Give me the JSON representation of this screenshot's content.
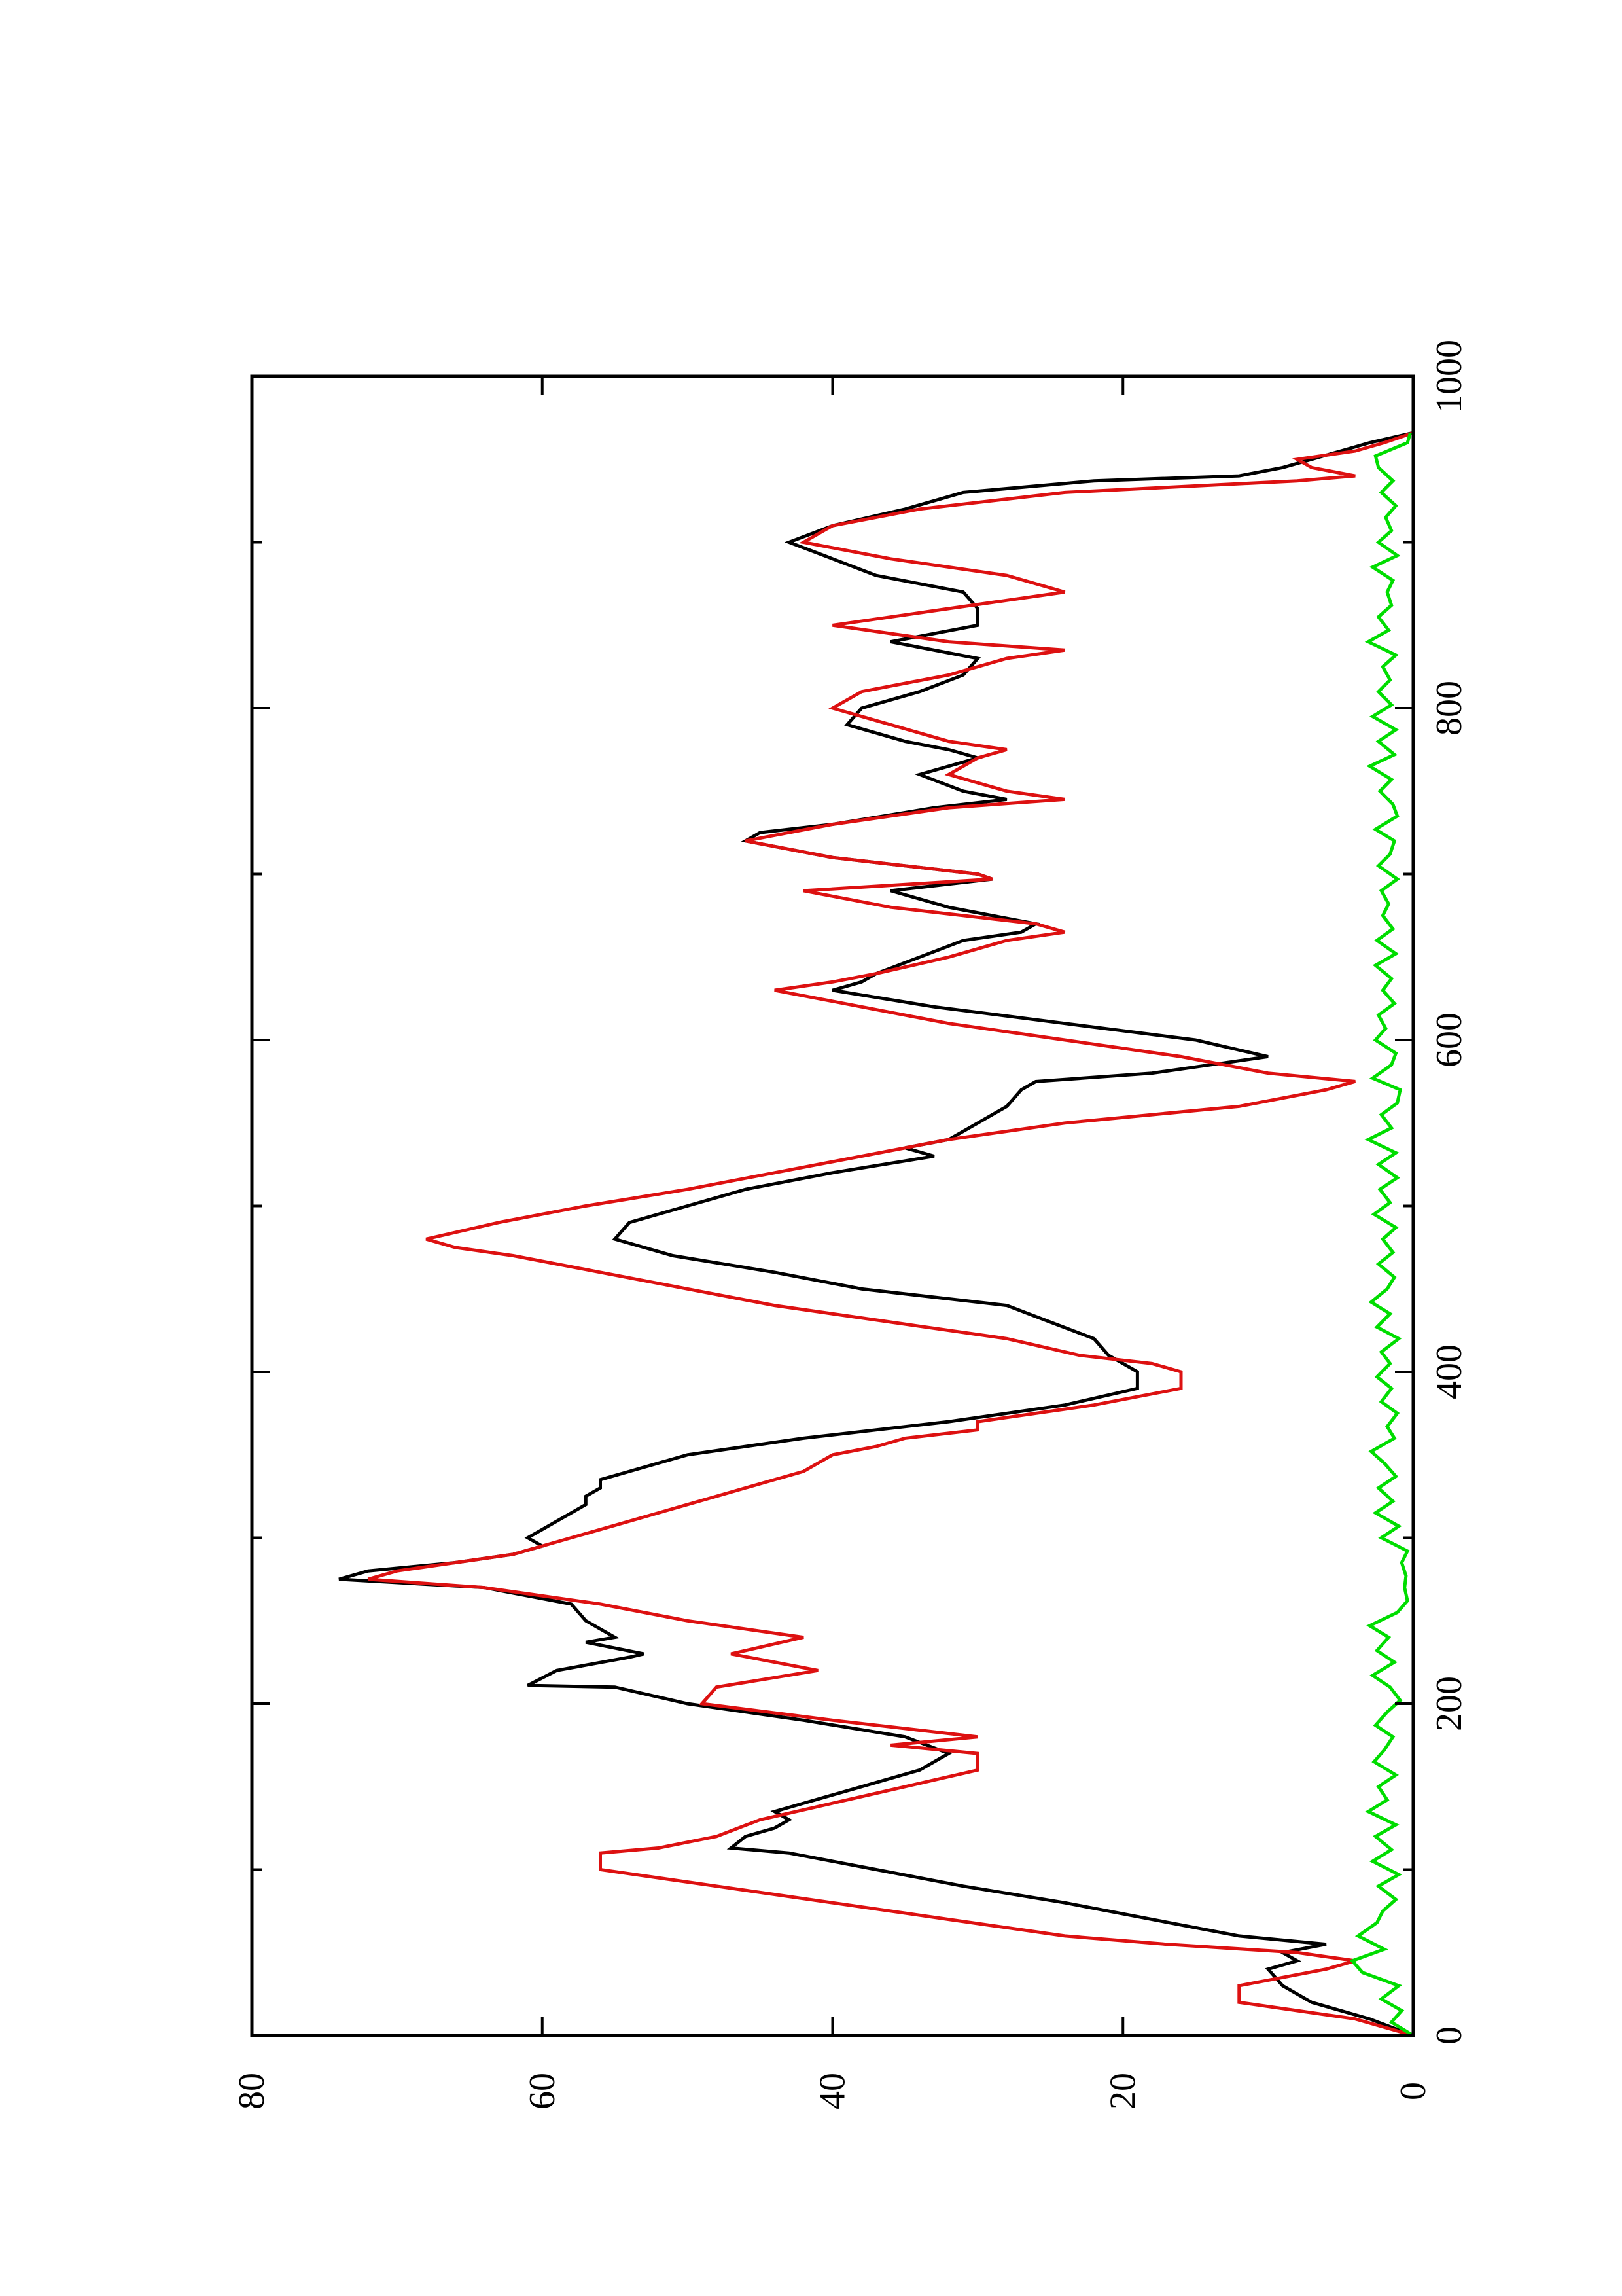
{
  "chart_data": {
    "type": "line",
    "orientation": "rotated-90-ccw",
    "title": "",
    "xlabel": "",
    "ylabel": "",
    "xlim": [
      0,
      1000
    ],
    "ylim": [
      0,
      80
    ],
    "grid": false,
    "x_ticks": [
      {
        "value": 0,
        "label": "0"
      },
      {
        "value": 200,
        "label": "200"
      },
      {
        "value": 400,
        "label": "400"
      },
      {
        "value": 600,
        "label": "600"
      },
      {
        "value": 800,
        "label": "800"
      },
      {
        "value": 1000,
        "label": "1000"
      }
    ],
    "x_minor_ticks": [
      100,
      300,
      500,
      700,
      900
    ],
    "y_ticks": [
      {
        "value": 0,
        "label": "0"
      },
      {
        "value": 20,
        "label": "20"
      },
      {
        "value": 40,
        "label": "40"
      },
      {
        "value": 60,
        "label": "60"
      },
      {
        "value": 80,
        "label": "80"
      }
    ],
    "series": [
      {
        "color": "#000000",
        "x": [
          0,
          10,
          20,
          30,
          40,
          45,
          50,
          55,
          60,
          70,
          80,
          90,
          100,
          110,
          113,
          120,
          125,
          130,
          135,
          140,
          150,
          160,
          170,
          180,
          190,
          200,
          210,
          211,
          220,
          228,
          230,
          237,
          240,
          250,
          260,
          270,
          275,
          280,
          285,
          290,
          295,
          300,
          305,
          310,
          320,
          325,
          330,
          335,
          340,
          350,
          360,
          370,
          380,
          390,
          396,
          400,
          405,
          410,
          420,
          430,
          440,
          450,
          460,
          470,
          480,
          490,
          500,
          510,
          520,
          530,
          535,
          540,
          550,
          560,
          570,
          575,
          580,
          590,
          600,
          610,
          620,
          630,
          635,
          640,
          650,
          660,
          665,
          670,
          680,
          690,
          697,
          700,
          710,
          720,
          725,
          730,
          740,
          745,
          750,
          760,
          770,
          775,
          780,
          790,
          800,
          810,
          820,
          830,
          840,
          845,
          850,
          860,
          870,
          880,
          890,
          900,
          910,
          920,
          930,
          937,
          940,
          945,
          950,
          955,
          960,
          966
        ],
        "y": [
          0,
          3,
          7,
          9,
          10,
          8,
          9,
          6,
          12,
          18,
          24,
          31,
          37,
          43,
          47,
          46,
          44,
          43,
          44,
          42,
          38,
          34,
          32,
          35,
          42,
          50,
          55,
          61,
          59,
          54,
          53,
          57,
          55,
          57,
          58,
          64,
          74,
          72,
          66,
          62,
          60,
          61,
          60,
          59,
          57,
          57,
          56,
          56,
          54,
          50,
          42,
          32,
          24,
          19,
          19,
          19,
          20,
          21,
          22,
          25,
          28,
          38,
          44,
          51,
          55,
          54,
          50,
          46,
          40,
          33,
          35,
          32,
          30,
          28,
          27,
          26,
          18,
          10,
          15,
          24,
          33,
          40,
          38,
          37,
          34,
          31,
          27,
          26,
          32,
          36,
          29,
          30,
          40,
          46,
          45,
          40,
          33,
          28,
          31,
          34,
          30,
          32,
          35,
          39,
          38,
          34,
          31,
          30,
          36,
          33,
          30,
          30,
          31,
          37,
          40,
          43,
          40,
          35,
          31,
          22,
          12,
          9,
          7,
          5,
          3,
          0
        ],
        "values_note": ""
      },
      {
        "color": "#dd1111",
        "x": [
          0,
          10,
          15,
          20,
          30,
          35,
          40,
          45,
          50,
          55,
          60,
          70,
          80,
          90,
          100,
          110,
          113,
          120,
          130,
          140,
          150,
          160,
          170,
          175,
          180,
          190,
          200,
          210,
          220,
          230,
          240,
          250,
          260,
          270,
          275,
          280,
          290,
          300,
          310,
          320,
          330,
          340,
          350,
          355,
          360,
          365,
          370,
          380,
          390,
          400,
          405,
          410,
          420,
          430,
          440,
          450,
          460,
          470,
          475,
          480,
          490,
          500,
          510,
          520,
          530,
          540,
          550,
          560,
          570,
          575,
          580,
          590,
          600,
          610,
          620,
          630,
          635,
          640,
          650,
          660,
          665,
          670,
          680,
          690,
          697,
          700,
          710,
          720,
          730,
          740,
          745,
          750,
          760,
          770,
          775,
          780,
          790,
          800,
          810,
          820,
          830,
          835,
          840,
          850,
          860,
          870,
          880,
          890,
          900,
          910,
          920,
          930,
          937,
          940,
          945,
          950,
          955,
          960,
          966
        ],
        "y": [
          0,
          4,
          8,
          12,
          12,
          9,
          6,
          4,
          8,
          17,
          24,
          32,
          40,
          48,
          56,
          56,
          52,
          48,
          45,
          40,
          35,
          30,
          30,
          36,
          30,
          40,
          49,
          48,
          41,
          47,
          42,
          50,
          56,
          64,
          72,
          70,
          62,
          58,
          54,
          50,
          46,
          42,
          40,
          37,
          35,
          30,
          30,
          22,
          16,
          16,
          18,
          23,
          28,
          36,
          44,
          50,
          56,
          62,
          66,
          68,
          63,
          57,
          50,
          44,
          38,
          32,
          24,
          12,
          6,
          4,
          10,
          16,
          24,
          32,
          38,
          44,
          40,
          37,
          32,
          28,
          24,
          26,
          36,
          42,
          29,
          30,
          40,
          46,
          40,
          32,
          24,
          28,
          32,
          30,
          28,
          32,
          36,
          40,
          38,
          32,
          28,
          24,
          32,
          40,
          32,
          24,
          28,
          36,
          42,
          40,
          34,
          24,
          8,
          4,
          7,
          8,
          4,
          2,
          0
        ]
      },
      {
        "color": "#00dd00",
        "x": [
          0,
          8,
          15,
          22,
          30,
          38,
          45,
          52,
          60,
          68,
          75,
          82,
          90,
          97,
          105,
          112,
          120,
          127,
          135,
          142,
          150,
          157,
          165,
          172,
          180,
          187,
          195,
          202,
          210,
          217,
          225,
          232,
          240,
          247,
          255,
          262,
          270,
          277,
          285,
          292,
          300,
          307,
          315,
          322,
          330,
          337,
          345,
          352,
          360,
          367,
          375,
          382,
          390,
          397,
          405,
          412,
          420,
          427,
          435,
          442,
          450,
          457,
          465,
          472,
          480,
          487,
          495,
          502,
          510,
          517,
          525,
          532,
          540,
          547,
          555,
          562,
          570,
          577,
          585,
          592,
          600,
          607,
          615,
          622,
          630,
          637,
          645,
          652,
          660,
          667,
          675,
          682,
          690,
          697,
          705,
          712,
          720,
          727,
          735,
          742,
          750,
          757,
          765,
          772,
          780,
          787,
          795,
          802,
          810,
          817,
          825,
          832,
          840,
          847,
          855,
          862,
          870,
          877,
          885,
          892,
          900,
          907,
          915,
          922,
          930,
          937,
          945,
          952,
          960,
          966
        ],
        "y": [
          0,
          1.5,
          0.8,
          2.2,
          1,
          3.5,
          4.2,
          2,
          3.8,
          2.5,
          2.1,
          1.2,
          2.4,
          1,
          2.8,
          1.5,
          2.6,
          1.2,
          3.1,
          1.8,
          2.4,
          1.2,
          2.7,
          2,
          1.4,
          2.6,
          1.8,
          0.9,
          1.6,
          2.8,
          1.3,
          2.5,
          1.7,
          3,
          1.1,
          0.4,
          0.6,
          0.5,
          0.8,
          0.4,
          2.2,
          1,
          2.6,
          1.4,
          2.4,
          1.2,
          2,
          2.9,
          1.3,
          1.8,
          1.1,
          2.2,
          1.5,
          2.5,
          1.6,
          2.2,
          1,
          2.5,
          1.6,
          2.9,
          1.8,
          1.3,
          2.4,
          1.4,
          2.1,
          1.2,
          2.7,
          1.6,
          2.3,
          1.1,
          2.4,
          1.2,
          3.1,
          1.5,
          2.2,
          1.1,
          0.9,
          2.8,
          1.5,
          1.2,
          2.6,
          1.9,
          2.4,
          1.3,
          2.1,
          1.5,
          2.6,
          1.2,
          2.5,
          1.4,
          2.1,
          1.7,
          2.2,
          1.1,
          2.4,
          1.6,
          1.3,
          2.6,
          1.1,
          1.4,
          2.3,
          1.5,
          3,
          1.3,
          2.4,
          1.2,
          2.8,
          1.5,
          2.4,
          1.6,
          2.1,
          1.2,
          3.1,
          1.7,
          2.4,
          1.5,
          1.8,
          1.4,
          2.8,
          1.1,
          2.4,
          1.5,
          1.9,
          1.2,
          2.2,
          1.4,
          2.4,
          2.6,
          0.4,
          0.2
        ]
      }
    ]
  }
}
